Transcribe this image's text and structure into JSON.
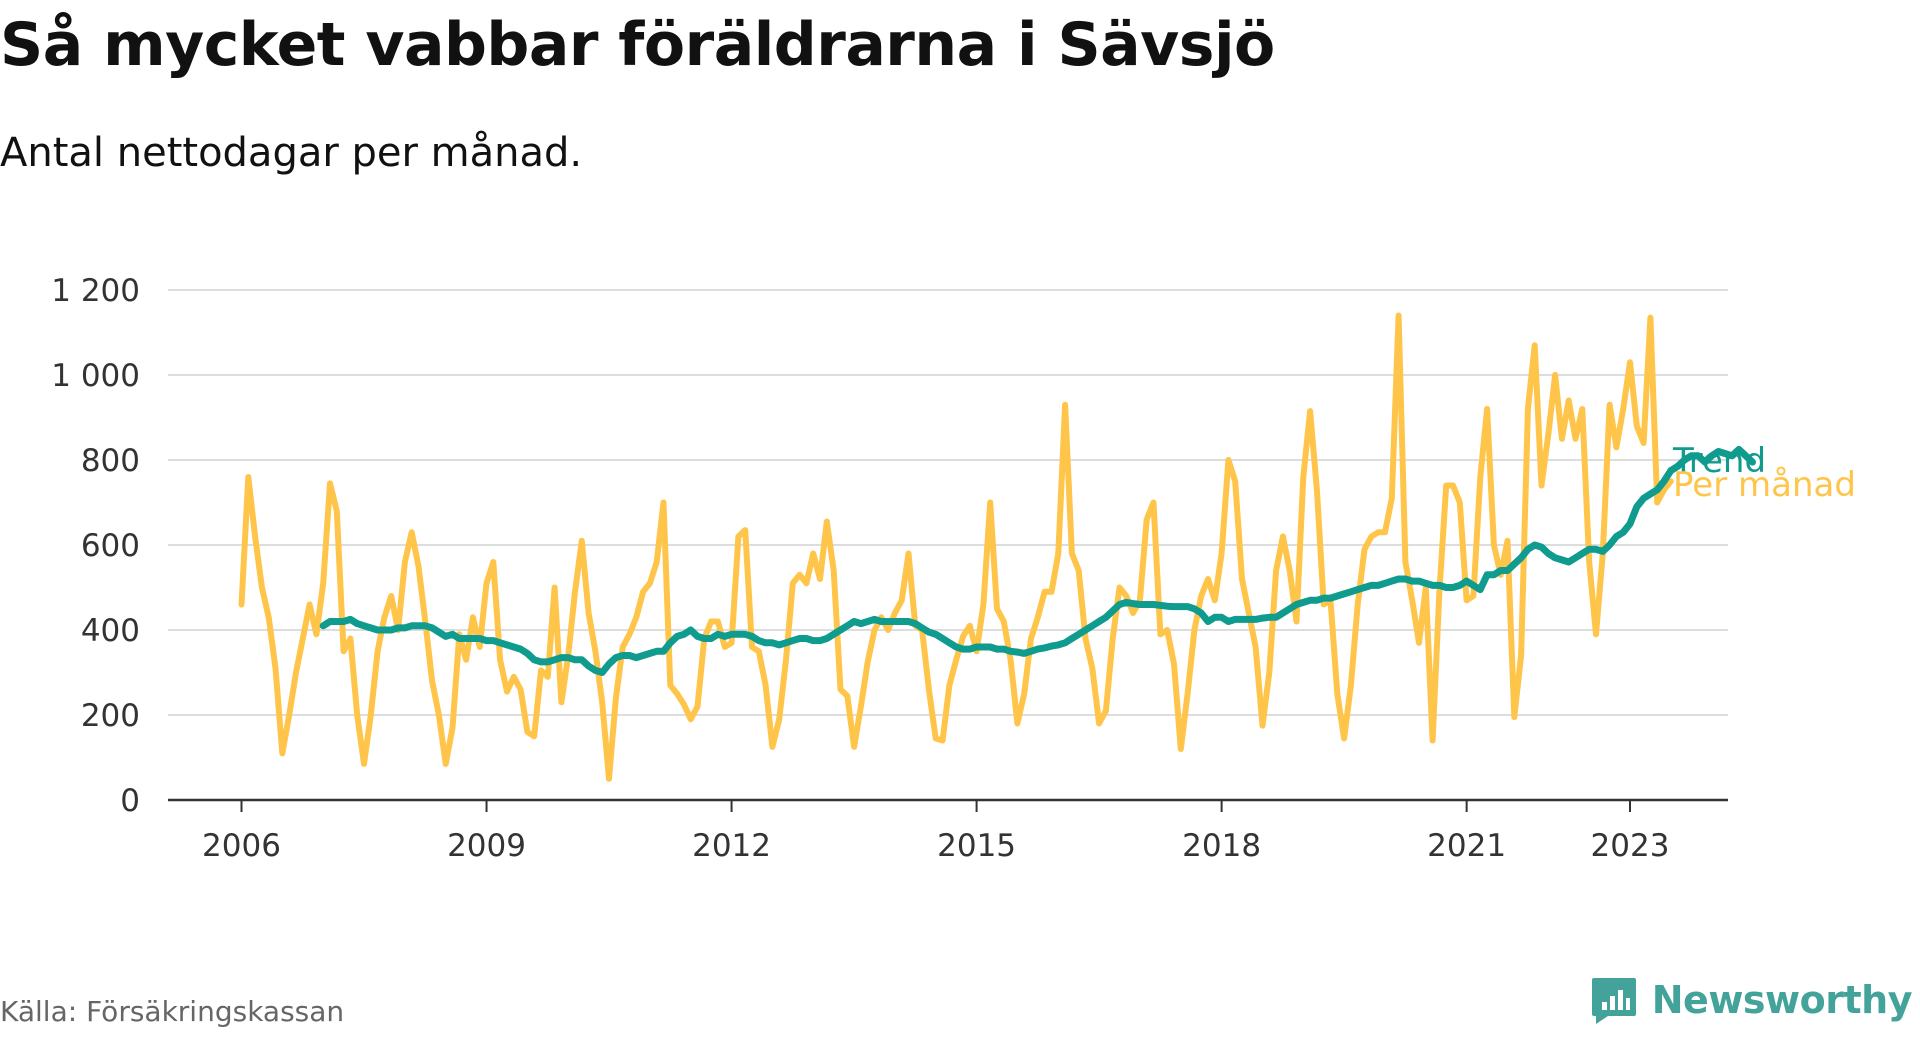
{
  "title": "Så mycket vabbar föräldrarna i Sävsjö",
  "subtitle": "Antal nettodagar per månad.",
  "source": "Källa: Försäkringskassan",
  "brand": {
    "name": "Newsworthy",
    "icon": "newsworthy-logo-icon"
  },
  "chart_data": {
    "type": "line",
    "title": "Så mycket vabbar föräldrarna i Sävsjö",
    "subtitle": "Antal nettodagar per månad.",
    "ylim": [
      0,
      1200
    ],
    "yticks": [
      0,
      200,
      400,
      600,
      800,
      1000,
      1200
    ],
    "ytick_labels": [
      "0",
      "200",
      "400",
      "600",
      "800",
      "1 000",
      "1 200"
    ],
    "xticks": [
      2006,
      2009,
      2012,
      2015,
      2018,
      2021,
      2023
    ],
    "xtick_labels": [
      "2006",
      "2009",
      "2012",
      "2015",
      "2018",
      "2021",
      "2023"
    ],
    "xlim": [
      2005.1,
      2024.2
    ],
    "grid": "horizontal",
    "legend": "inline-right",
    "colors": {
      "Trend": "#0f9b8e",
      "Per månad": "#ffc54a",
      "grid": "#dddddd",
      "axis": "#333333"
    },
    "series": [
      {
        "name": "Per månad",
        "start": "2006-01",
        "interval": "month",
        "values": [
          460,
          760,
          620,
          500,
          430,
          310,
          110,
          200,
          300,
          380,
          460,
          390,
          510,
          745,
          680,
          350,
          380,
          200,
          85,
          200,
          350,
          430,
          480,
          400,
          560,
          630,
          550,
          420,
          280,
          200,
          85,
          170,
          390,
          330,
          430,
          360,
          510,
          560,
          330,
          255,
          290,
          260,
          160,
          150,
          305,
          290,
          500,
          230,
          340,
          490,
          610,
          440,
          350,
          230,
          50,
          240,
          360,
          390,
          430,
          490,
          510,
          560,
          700,
          270,
          250,
          225,
          190,
          220,
          380,
          420,
          420,
          360,
          370,
          620,
          635,
          360,
          350,
          270,
          125,
          190,
          330,
          510,
          530,
          510,
          580,
          520,
          655,
          540,
          260,
          245,
          125,
          220,
          325,
          400,
          430,
          400,
          440,
          470,
          580,
          410,
          400,
          260,
          145,
          140,
          270,
          330,
          385,
          410,
          350,
          460,
          700,
          450,
          420,
          330,
          180,
          250,
          380,
          430,
          490,
          490,
          580,
          930,
          580,
          540,
          380,
          310,
          180,
          210,
          380,
          500,
          480,
          440,
          470,
          660,
          700,
          390,
          400,
          320,
          120,
          250,
          400,
          480,
          520,
          470,
          580,
          800,
          750,
          520,
          440,
          360,
          175,
          300,
          540,
          620,
          540,
          420,
          760,
          915,
          730,
          460,
          470,
          250,
          145,
          270,
          460,
          590,
          620,
          630,
          630,
          710,
          1140,
          560,
          470,
          370,
          500,
          140,
          490,
          740,
          740,
          700,
          470,
          480,
          760,
          920,
          600,
          530,
          610,
          195,
          340,
          920,
          1070,
          740,
          860,
          1000,
          850,
          940,
          850,
          920,
          560,
          390,
          580,
          930,
          830,
          920,
          1030,
          880,
          840,
          1135,
          700,
          730,
          750
        ]
      },
      {
        "name": "Trend",
        "start": "2007-01",
        "interval": "month",
        "values": [
          410,
          420,
          420,
          420,
          425,
          415,
          410,
          405,
          400,
          400,
          400,
          405,
          405,
          410,
          410,
          410,
          405,
          395,
          385,
          390,
          380,
          380,
          380,
          380,
          375,
          375,
          370,
          365,
          360,
          355,
          345,
          330,
          325,
          325,
          330,
          335,
          335,
          330,
          330,
          315,
          305,
          300,
          320,
          335,
          340,
          340,
          335,
          340,
          345,
          350,
          350,
          370,
          385,
          390,
          400,
          385,
          380,
          380,
          390,
          385,
          390,
          390,
          390,
          385,
          375,
          370,
          370,
          365,
          370,
          375,
          380,
          380,
          375,
          375,
          380,
          390,
          400,
          410,
          420,
          415,
          420,
          425,
          420,
          420,
          420,
          420,
          420,
          415,
          405,
          395,
          390,
          380,
          370,
          360,
          355,
          355,
          360,
          360,
          360,
          355,
          355,
          350,
          348,
          345,
          350,
          355,
          358,
          362,
          365,
          370,
          380,
          390,
          400,
          410,
          420,
          430,
          445,
          460,
          465,
          462,
          460,
          460,
          460,
          458,
          456,
          455,
          455,
          455,
          450,
          440,
          420,
          430,
          430,
          420,
          425,
          425,
          425,
          425,
          428,
          430,
          430,
          440,
          450,
          460,
          465,
          470,
          470,
          475,
          475,
          480,
          485,
          490,
          495,
          500,
          505,
          505,
          510,
          515,
          520,
          520,
          515,
          515,
          510,
          505,
          505,
          500,
          500,
          505,
          515,
          505,
          495,
          530,
          530,
          540,
          540,
          555,
          570,
          590,
          600,
          595,
          580,
          570,
          565,
          560,
          570,
          580,
          590,
          590,
          585,
          600,
          620,
          630,
          650,
          690,
          710,
          720,
          730,
          750,
          775,
          785,
          800,
          810,
          810,
          795,
          810,
          820,
          815,
          810,
          825,
          810,
          795
        ]
      }
    ]
  }
}
